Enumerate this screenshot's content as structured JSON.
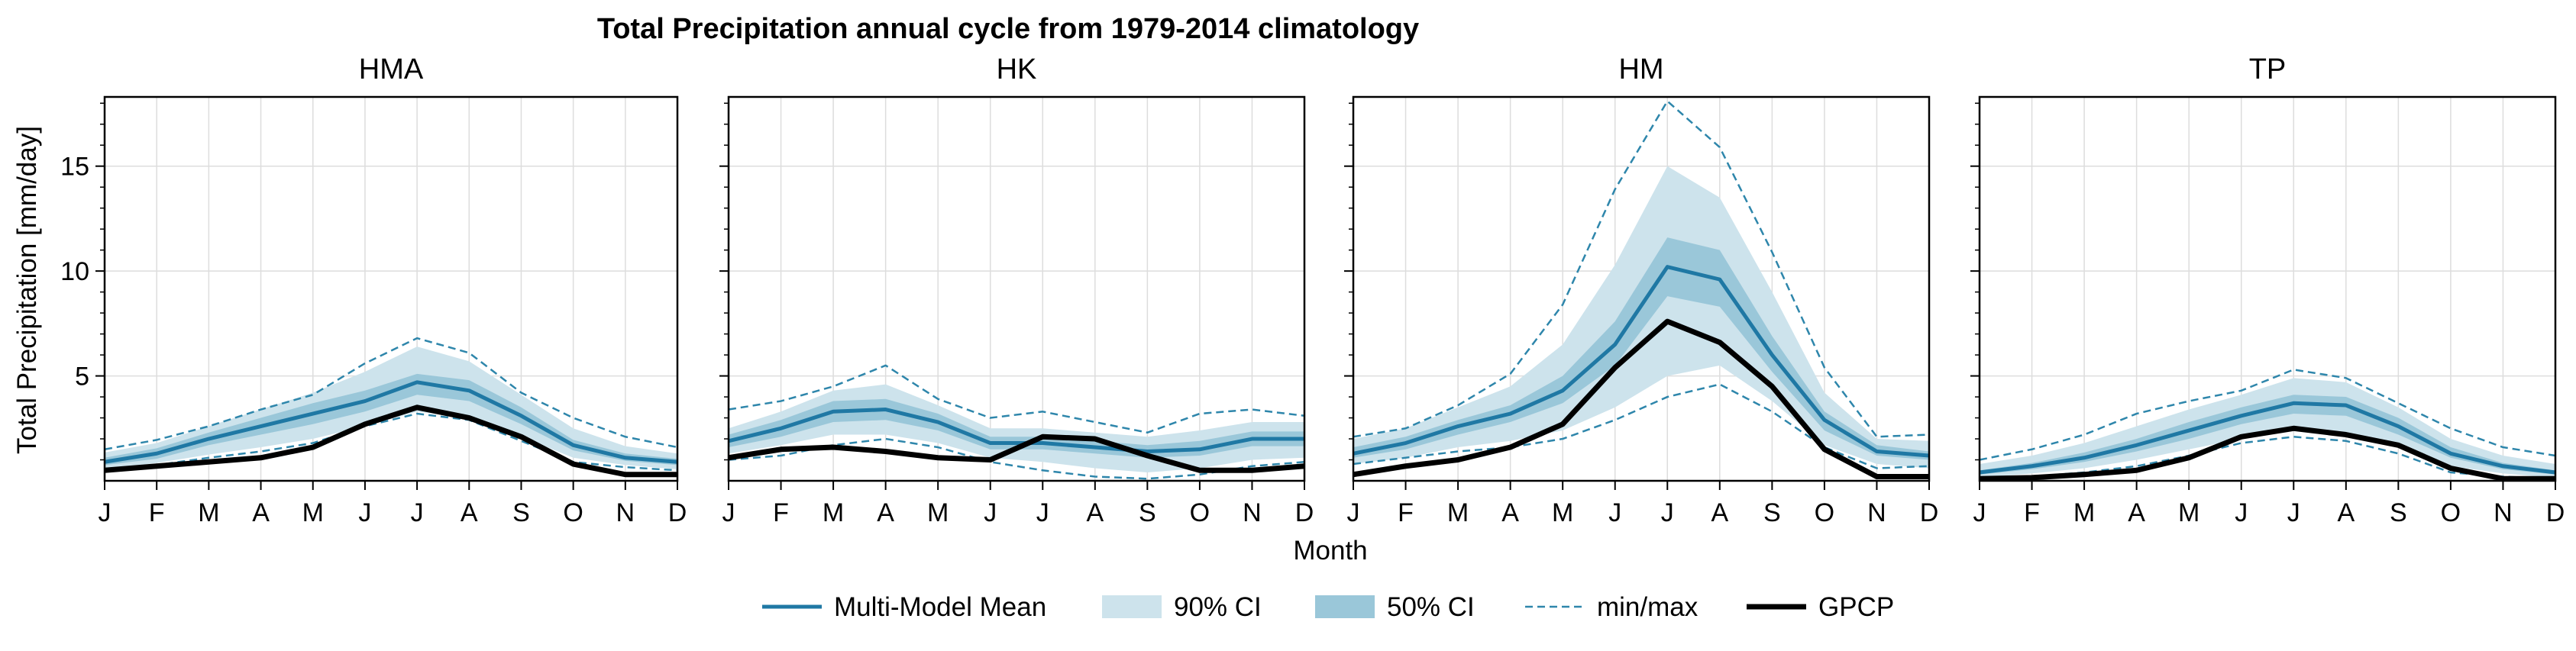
{
  "chart_data": {
    "type": "line",
    "title": "Total Precipitation annual cycle from 1979-2014 climatology",
    "xlabel": "Month",
    "ylabel": "Total Precipitation [mm/day]",
    "categories": [
      "J",
      "F",
      "M",
      "A",
      "M",
      "J",
      "J",
      "A",
      "S",
      "O",
      "N",
      "D"
    ],
    "ylim": [
      0,
      18.3
    ],
    "yticks": [
      5,
      10,
      15
    ],
    "grid": true,
    "legend_position": "bottom-center",
    "colors": {
      "mean": "#1f78a4",
      "ci90": "#cde3ec",
      "ci50": "#9ac7d9",
      "minmax": "#2e86ab",
      "gpcp": "#000000"
    },
    "legend": [
      "Multi-Model Mean",
      "90% CI",
      "50% CI",
      "min/max",
      "GPCP"
    ],
    "panels": [
      {
        "title": "HMA",
        "mean": [
          0.9,
          1.3,
          2.0,
          2.6,
          3.2,
          3.8,
          4.7,
          4.3,
          3.1,
          1.7,
          1.1,
          0.9
        ],
        "ci50_lower": [
          0.75,
          1.05,
          1.7,
          2.2,
          2.7,
          3.3,
          4.1,
          3.8,
          2.7,
          1.45,
          0.95,
          0.75
        ],
        "ci50_upper": [
          1.1,
          1.55,
          2.3,
          3.0,
          3.7,
          4.3,
          5.1,
          4.8,
          3.5,
          1.95,
          1.3,
          1.05
        ],
        "ci90_lower": [
          0.55,
          0.85,
          1.25,
          1.6,
          2.0,
          2.6,
          3.3,
          3.0,
          2.1,
          1.1,
          0.75,
          0.55
        ],
        "ci90_upper": [
          1.35,
          1.8,
          2.6,
          3.4,
          4.2,
          5.2,
          6.4,
          5.7,
          4.1,
          2.5,
          1.65,
          1.3
        ],
        "min": [
          0.5,
          0.75,
          1.1,
          1.4,
          1.8,
          2.6,
          3.2,
          2.9,
          1.9,
          0.9,
          0.65,
          0.5
        ],
        "max": [
          1.5,
          1.95,
          2.6,
          3.4,
          4.1,
          5.6,
          6.8,
          6.1,
          4.2,
          3.0,
          2.1,
          1.6
        ],
        "gpcp": [
          0.5,
          0.7,
          0.9,
          1.1,
          1.6,
          2.7,
          3.5,
          3.0,
          2.1,
          0.8,
          0.3,
          0.3
        ]
      },
      {
        "title": "HK",
        "mean": [
          1.9,
          2.5,
          3.3,
          3.4,
          2.8,
          1.8,
          1.8,
          1.6,
          1.4,
          1.5,
          2.0,
          2.0
        ],
        "ci50_lower": [
          1.6,
          2.1,
          2.8,
          2.9,
          2.4,
          1.5,
          1.5,
          1.3,
          1.1,
          1.2,
          1.65,
          1.65
        ],
        "ci50_upper": [
          2.2,
          2.9,
          3.8,
          3.9,
          3.2,
          2.1,
          2.1,
          1.9,
          1.7,
          1.9,
          2.35,
          2.35
        ],
        "ci90_lower": [
          1.3,
          1.7,
          2.2,
          2.2,
          1.8,
          1.1,
          0.9,
          0.6,
          0.4,
          0.6,
          1.0,
          1.1
        ],
        "ci90_upper": [
          2.5,
          3.3,
          4.3,
          4.6,
          3.6,
          2.5,
          2.5,
          2.3,
          2.1,
          2.4,
          2.8,
          2.8
        ],
        "min": [
          1.0,
          1.2,
          1.7,
          2.0,
          1.6,
          0.9,
          0.5,
          0.2,
          0.1,
          0.3,
          0.7,
          0.9
        ],
        "max": [
          3.4,
          3.8,
          4.5,
          5.5,
          3.9,
          3.0,
          3.3,
          2.8,
          2.3,
          3.2,
          3.4,
          3.1
        ],
        "gpcp": [
          1.1,
          1.5,
          1.6,
          1.4,
          1.1,
          1.0,
          2.1,
          2.0,
          1.2,
          0.5,
          0.5,
          0.7
        ]
      },
      {
        "title": "HM",
        "mean": [
          1.3,
          1.8,
          2.6,
          3.2,
          4.3,
          6.5,
          10.2,
          9.6,
          6.0,
          2.9,
          1.4,
          1.2
        ],
        "ci50_lower": [
          1.1,
          1.5,
          2.2,
          2.8,
          3.7,
          5.5,
          8.8,
          8.3,
          5.2,
          2.4,
          1.2,
          1.0
        ],
        "ci50_upper": [
          1.6,
          2.1,
          2.9,
          3.6,
          5.0,
          7.6,
          11.6,
          11.0,
          6.9,
          3.3,
          1.7,
          1.4
        ],
        "ci90_lower": [
          0.8,
          1.1,
          1.6,
          1.9,
          2.4,
          3.5,
          5.0,
          5.5,
          3.8,
          1.7,
          0.8,
          0.6
        ],
        "ci90_upper": [
          2.0,
          2.5,
          3.5,
          4.5,
          6.5,
          10.3,
          15.0,
          13.5,
          9.0,
          4.2,
          2.0,
          1.9
        ],
        "min": [
          0.8,
          1.1,
          1.4,
          1.6,
          2.0,
          2.9,
          4.0,
          4.6,
          3.3,
          1.6,
          0.6,
          0.7
        ],
        "max": [
          2.1,
          2.5,
          3.6,
          5.1,
          8.4,
          13.9,
          18.1,
          15.9,
          10.9,
          5.4,
          2.1,
          2.2
        ],
        "gpcp": [
          0.3,
          0.7,
          1.0,
          1.6,
          2.7,
          5.4,
          7.6,
          6.6,
          4.5,
          1.5,
          0.2,
          0.2
        ]
      },
      {
        "title": "TP",
        "mean": [
          0.4,
          0.7,
          1.1,
          1.7,
          2.4,
          3.1,
          3.7,
          3.6,
          2.6,
          1.3,
          0.7,
          0.4
        ],
        "ci50_lower": [
          0.3,
          0.55,
          0.9,
          1.4,
          2.0,
          2.7,
          3.2,
          3.1,
          2.2,
          1.1,
          0.55,
          0.3
        ],
        "ci50_upper": [
          0.5,
          0.85,
          1.35,
          2.0,
          2.8,
          3.5,
          4.1,
          4.0,
          3.0,
          1.6,
          0.85,
          0.5
        ],
        "ci90_lower": [
          0.15,
          0.35,
          0.6,
          1.0,
          1.5,
          2.0,
          2.4,
          2.3,
          1.6,
          0.7,
          0.35,
          0.15
        ],
        "ci90_upper": [
          0.8,
          1.2,
          1.8,
          2.6,
          3.4,
          4.1,
          4.9,
          4.7,
          3.5,
          2.0,
          1.2,
          0.8
        ],
        "min": [
          0.1,
          0.2,
          0.4,
          0.7,
          1.2,
          1.8,
          2.1,
          1.9,
          1.3,
          0.4,
          0.2,
          0.1
        ],
        "max": [
          1.0,
          1.5,
          2.2,
          3.2,
          3.8,
          4.3,
          5.3,
          4.9,
          3.7,
          2.5,
          1.6,
          1.2
        ],
        "gpcp": [
          0.1,
          0.15,
          0.3,
          0.5,
          1.1,
          2.1,
          2.5,
          2.2,
          1.7,
          0.6,
          0.1,
          0.1
        ]
      }
    ]
  }
}
